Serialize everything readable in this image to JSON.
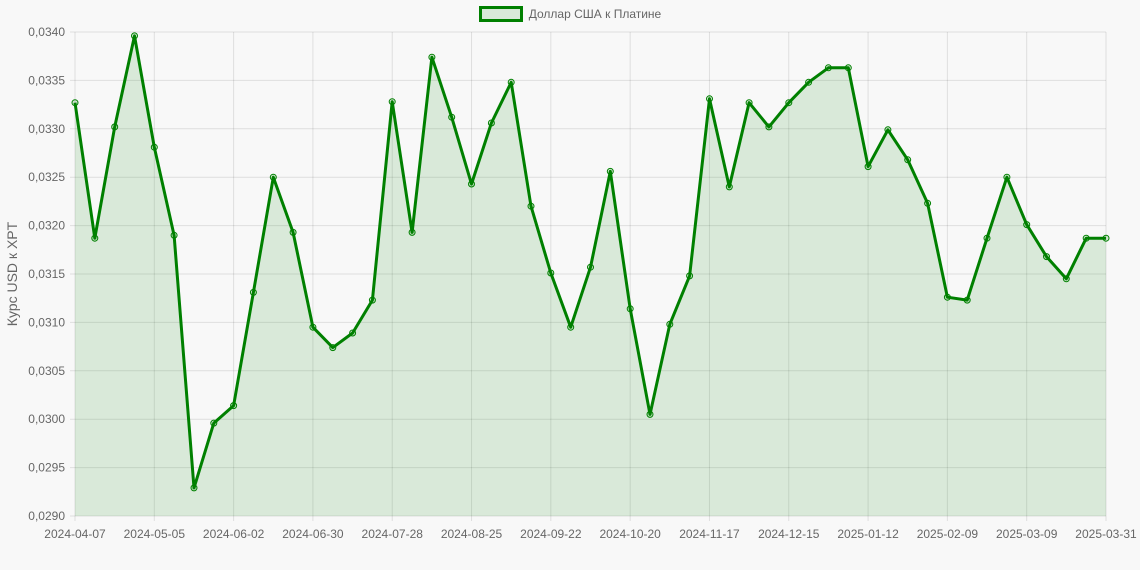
{
  "legend": {
    "label": "Доллар США к Платине",
    "color": "#008000"
  },
  "chart_data": {
    "type": "line",
    "title": "",
    "xlabel": "",
    "ylabel": "Курс USD к XPT",
    "ylim": [
      0.029,
      0.034
    ],
    "yticks": [
      "0,0290",
      "0,0295",
      "0,0300",
      "0,0305",
      "0,0310",
      "0,0315",
      "0,0320",
      "0,0325",
      "0,0330",
      "0,0335",
      "0,0340"
    ],
    "xtick_labels": [
      "2024-04-07",
      "2024-05-05",
      "2024-06-02",
      "2024-06-30",
      "2024-07-28",
      "2024-08-25",
      "2024-09-22",
      "2024-10-20",
      "2024-11-17",
      "2024-12-15",
      "2025-01-12",
      "2025-02-09",
      "2025-03-09",
      "2025-03-31"
    ],
    "grid": true,
    "fill": true,
    "legend_position": "top",
    "series": [
      {
        "name": "Доллар США к Платине",
        "color": "#008000",
        "values": [
          0.03327,
          0.03187,
          0.03302,
          0.03396,
          0.03281,
          0.0319,
          0.02929,
          0.02996,
          0.03014,
          0.03131,
          0.0325,
          0.03193,
          0.03095,
          0.03074,
          0.03089,
          0.03123,
          0.03328,
          0.03193,
          0.03374,
          0.03312,
          0.03243,
          0.03306,
          0.03348,
          0.0322,
          0.03151,
          0.03095,
          0.03157,
          0.03256,
          0.03114,
          0.03005,
          0.03098,
          0.03148,
          0.03331,
          0.0324,
          0.03327,
          0.03302,
          0.03327,
          0.03348,
          0.03363,
          0.03363,
          0.03261,
          0.03299,
          0.03268,
          0.03223,
          0.03126,
          0.03123,
          0.03187,
          0.0325,
          0.03201,
          0.03168,
          0.03145,
          0.03187,
          0.03187
        ]
      }
    ]
  }
}
